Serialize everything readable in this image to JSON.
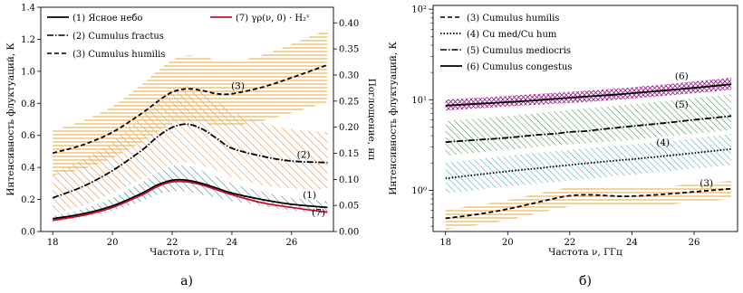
{
  "chart_data": [
    {
      "type": "line",
      "caption": "а)",
      "xlabel": "Частота ν, ГГц",
      "ylabel": "Интенсивность флуктуаций, К",
      "ylabel_right": "Поглощение, нп",
      "xlim": [
        17.6,
        27.4
      ],
      "ylim": [
        0.0,
        1.4
      ],
      "ylim_right": [
        0.0,
        0.43
      ],
      "xticks": [
        "18",
        "20",
        "22",
        "24",
        "26"
      ],
      "yticks": [
        "0.0",
        "0.2",
        "0.4",
        "0.6",
        "0.8",
        "1.0",
        "1.2",
        "1.4"
      ],
      "yticks_right": [
        "0.00",
        "0.05",
        "0.10",
        "0.15",
        "0.20",
        "0.25",
        "0.30",
        "0.35",
        "0.40"
      ],
      "x": [
        18,
        19,
        20,
        21,
        21.5,
        22,
        22.5,
        23,
        23.5,
        24,
        25,
        26,
        27.2
      ],
      "series": [
        {
          "name": "(1) Ясное небо",
          "style": "solid",
          "color": "#000000",
          "values": [
            0.08,
            0.11,
            0.16,
            0.24,
            0.29,
            0.32,
            0.32,
            0.3,
            0.27,
            0.24,
            0.2,
            0.17,
            0.15
          ],
          "band_lower": [
            0.06,
            0.09,
            0.13,
            0.19,
            0.23,
            0.25,
            0.25,
            0.23,
            0.21,
            0.19,
            0.16,
            0.13,
            0.11
          ],
          "band_upper": [
            0.1,
            0.14,
            0.21,
            0.31,
            0.37,
            0.41,
            0.41,
            0.38,
            0.34,
            0.3,
            0.25,
            0.21,
            0.19
          ],
          "hatch": "\\\\",
          "hatch_color": "#1f6f7a"
        },
        {
          "name": "(2) Cumulus fractus",
          "style": "dashdot",
          "color": "#000000",
          "values": [
            0.21,
            0.28,
            0.38,
            0.51,
            0.59,
            0.65,
            0.67,
            0.64,
            0.58,
            0.52,
            0.47,
            0.44,
            0.43
          ],
          "band_lower": [
            0.11,
            0.16,
            0.24,
            0.33,
            0.38,
            0.42,
            0.43,
            0.41,
            0.38,
            0.34,
            0.29,
            0.27,
            0.26
          ],
          "band_upper": [
            0.36,
            0.45,
            0.56,
            0.72,
            0.82,
            0.89,
            0.91,
            0.88,
            0.81,
            0.75,
            0.68,
            0.64,
            0.62
          ],
          "hatch": "\\\\",
          "hatch_color": "#d9823a"
        },
        {
          "name": "(3) Cumulus humilis",
          "style": "dashed",
          "color": "#000000",
          "values": [
            0.49,
            0.54,
            0.62,
            0.74,
            0.81,
            0.87,
            0.89,
            0.88,
            0.86,
            0.86,
            0.9,
            0.96,
            1.04
          ],
          "band_lower": [
            0.35,
            0.39,
            0.46,
            0.56,
            0.62,
            0.67,
            0.69,
            0.68,
            0.66,
            0.66,
            0.69,
            0.74,
            0.81
          ],
          "band_upper": [
            0.63,
            0.69,
            0.78,
            0.92,
            1.0,
            1.07,
            1.1,
            1.09,
            1.07,
            1.06,
            1.1,
            1.17,
            1.26
          ],
          "hatch": "-",
          "hatch_color": "#e8a63a"
        },
        {
          "name": "(7) γρ(ν, 0) · H₂ᵛ",
          "style": "solid",
          "color": "#c8102e",
          "values": [
            0.07,
            0.1,
            0.15,
            0.23,
            0.28,
            0.31,
            0.31,
            0.29,
            0.26,
            0.23,
            0.18,
            0.15,
            0.12
          ]
        }
      ],
      "annotations": [
        {
          "text": "(3)",
          "x": 24.2,
          "y": 0.89
        },
        {
          "text": "(2)",
          "x": 26.4,
          "y": 0.46
        },
        {
          "text": "(1)",
          "x": 26.6,
          "y": 0.21
        },
        {
          "text": "(7)",
          "x": 26.9,
          "y": 0.1
        }
      ],
      "legend": "top"
    },
    {
      "type": "line",
      "caption": "б)",
      "xlabel": "Частота ν, ГГц",
      "ylabel": "Интенсивность флуктуаций, К",
      "yscale": "log",
      "xlim": [
        17.6,
        27.4
      ],
      "ylim": [
        0.35,
        110
      ],
      "xticks": [
        "18",
        "20",
        "22",
        "24",
        "26"
      ],
      "yticks": [
        "10⁰",
        "10¹",
        "10²"
      ],
      "x": [
        18,
        19,
        20,
        21,
        21.5,
        22,
        22.5,
        23,
        23.5,
        24,
        25,
        26,
        27.2
      ],
      "series": [
        {
          "name": "(3) Cumulus humilis",
          "style": "dashed",
          "color": "#000000",
          "values": [
            0.49,
            0.54,
            0.62,
            0.74,
            0.81,
            0.87,
            0.89,
            0.88,
            0.86,
            0.86,
            0.9,
            0.96,
            1.04
          ],
          "band_lower": [
            0.37,
            0.41,
            0.47,
            0.56,
            0.61,
            0.66,
            0.68,
            0.67,
            0.66,
            0.66,
            0.69,
            0.74,
            0.8
          ],
          "band_upper": [
            0.62,
            0.68,
            0.78,
            0.92,
            1.0,
            1.07,
            1.1,
            1.09,
            1.07,
            1.06,
            1.1,
            1.17,
            1.26
          ],
          "hatch": "-",
          "hatch_color": "#e8a63a"
        },
        {
          "name": "(4) Cu med/Cu hum",
          "style": "dotted",
          "color": "#000000",
          "values": [
            1.35,
            1.48,
            1.62,
            1.75,
            1.83,
            1.9,
            1.98,
            2.05,
            2.13,
            2.2,
            2.38,
            2.58,
            2.85
          ],
          "band_lower": [
            0.92,
            1.0,
            1.1,
            1.18,
            1.23,
            1.28,
            1.33,
            1.38,
            1.43,
            1.48,
            1.6,
            1.73,
            1.9
          ],
          "band_upper": [
            2.0,
            2.2,
            2.4,
            2.6,
            2.7,
            2.8,
            2.9,
            3.0,
            3.1,
            3.2,
            3.45,
            3.75,
            4.2
          ],
          "hatch": "\\\\",
          "hatch_color": "#2aa3a0"
        },
        {
          "name": "(5) Cumulus mediocris",
          "style": "dashdot",
          "color": "#000000",
          "values": [
            3.4,
            3.6,
            3.8,
            4.1,
            4.2,
            4.4,
            4.5,
            4.7,
            4.9,
            5.1,
            5.5,
            6.0,
            6.6
          ],
          "band_lower": [
            2.4,
            2.6,
            2.8,
            3.0,
            3.1,
            3.2,
            3.3,
            3.4,
            3.5,
            3.6,
            3.9,
            4.2,
            4.6
          ],
          "band_upper": [
            5.8,
            6.2,
            6.6,
            7.1,
            7.4,
            7.7,
            8.0,
            8.3,
            8.6,
            8.9,
            9.6,
            10.4,
            11.5
          ],
          "hatch": "\\\\",
          "hatch_color": "#2e8b3e"
        },
        {
          "name": "(6) Cumulus congestus",
          "style": "solid",
          "color": "#000000",
          "values": [
            8.6,
            9.0,
            9.4,
            9.9,
            10.2,
            10.5,
            10.8,
            11.1,
            11.4,
            11.8,
            12.6,
            13.5,
            14.8
          ],
          "band_lower": [
            7.6,
            8.0,
            8.4,
            8.8,
            9.0,
            9.2,
            9.4,
            9.7,
            10.0,
            10.3,
            11.0,
            11.8,
            12.9
          ],
          "band_upper": [
            10.0,
            10.5,
            11.0,
            11.6,
            11.9,
            12.2,
            12.5,
            12.9,
            13.3,
            13.7,
            14.7,
            15.9,
            17.5
          ],
          "hatch": "x",
          "hatch_color": "#a0208f"
        }
      ],
      "annotations": [
        {
          "text": "(6)",
          "x": 25.6,
          "y": 16.8
        },
        {
          "text": "(5)",
          "x": 25.6,
          "y": 8.2
        },
        {
          "text": "(4)",
          "x": 25.0,
          "y": 3.1
        },
        {
          "text": "(3)",
          "x": 26.4,
          "y": 1.1
        }
      ],
      "legend": "top-left"
    }
  ]
}
